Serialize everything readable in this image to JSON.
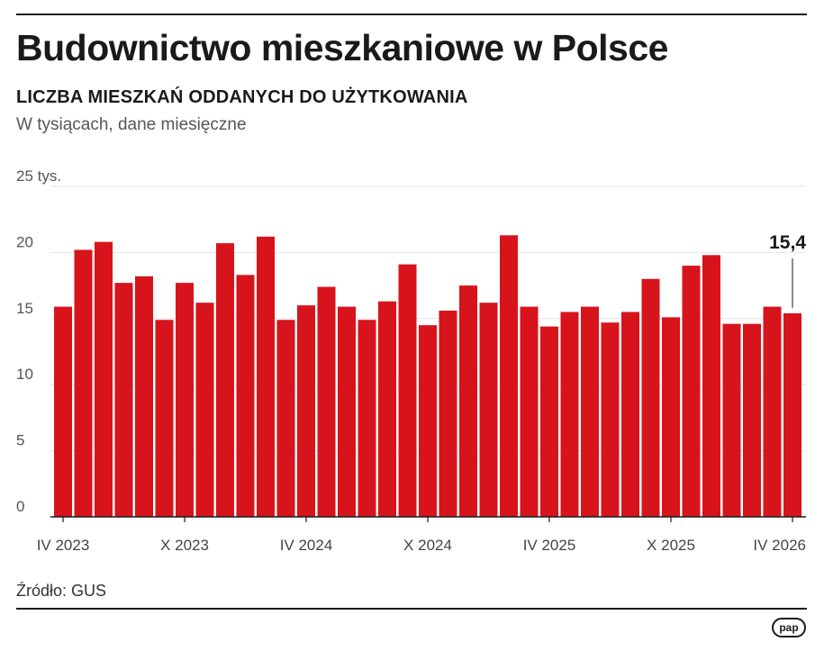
{
  "header": {
    "title": "Budownictwo mieszkaniowe w Polsce",
    "subtitle": "LICZBA MIESZKAŃ ODDANYCH DO UŻYTKOWANIA",
    "unit_note": "W tysiącach, dane miesięczne"
  },
  "colors": {
    "bar": "#d7141c",
    "grid": "#e6e6e6",
    "axis": "#1a1a1a"
  },
  "chart_data": {
    "type": "bar",
    "title": "LICZBA MIESZKAŃ ODDANYCH DO UŻYTKOWANIA",
    "ylabel": "W tysiącach, dane miesięczne",
    "ylim": [
      0,
      25
    ],
    "yticks": [
      0,
      5,
      10,
      15,
      20,
      25
    ],
    "ytick_labels": [
      "0",
      "5",
      "10",
      "15",
      "20",
      "25 tys."
    ],
    "grid": true,
    "categories": [
      "IV 2023",
      "V 2023",
      "VI 2023",
      "VII 2023",
      "VIII 2023",
      "IX 2023",
      "X 2023",
      "XI 2023",
      "XII 2023",
      "I 2024",
      "II 2024",
      "III 2024",
      "IV 2024",
      "V 2024",
      "VI 2024",
      "VII 2024",
      "VIII 2024",
      "IX 2024",
      "X 2024",
      "XI 2024",
      "XII 2024",
      "I 2025",
      "II 2025",
      "III 2025",
      "IV 2025",
      "V 2025",
      "VI 2025",
      "VII 2025",
      "VIII 2025",
      "IX 2025",
      "X 2025",
      "XI 2025",
      "XII 2025",
      "I 2026",
      "II 2026",
      "III 2026",
      "IV 2026"
    ],
    "values": [
      15.9,
      20.2,
      20.8,
      17.7,
      18.2,
      14.9,
      17.7,
      16.2,
      20.7,
      18.3,
      21.2,
      14.9,
      16.0,
      17.4,
      15.9,
      14.9,
      16.3,
      19.1,
      14.5,
      15.6,
      17.5,
      16.2,
      21.3,
      15.9,
      14.4,
      15.5,
      15.9,
      14.7,
      15.5,
      18.0,
      15.1,
      19.0,
      19.8,
      14.6,
      14.6,
      15.9,
      15.4
    ],
    "x_tick_labels": [
      "IV 2023",
      "X 2023",
      "IV 2024",
      "X 2024",
      "IV 2025",
      "X 2025",
      "IV 2026"
    ],
    "highlight_label": "15,4"
  },
  "footer": {
    "source": "Źródło: GUS",
    "logo": "pap"
  }
}
